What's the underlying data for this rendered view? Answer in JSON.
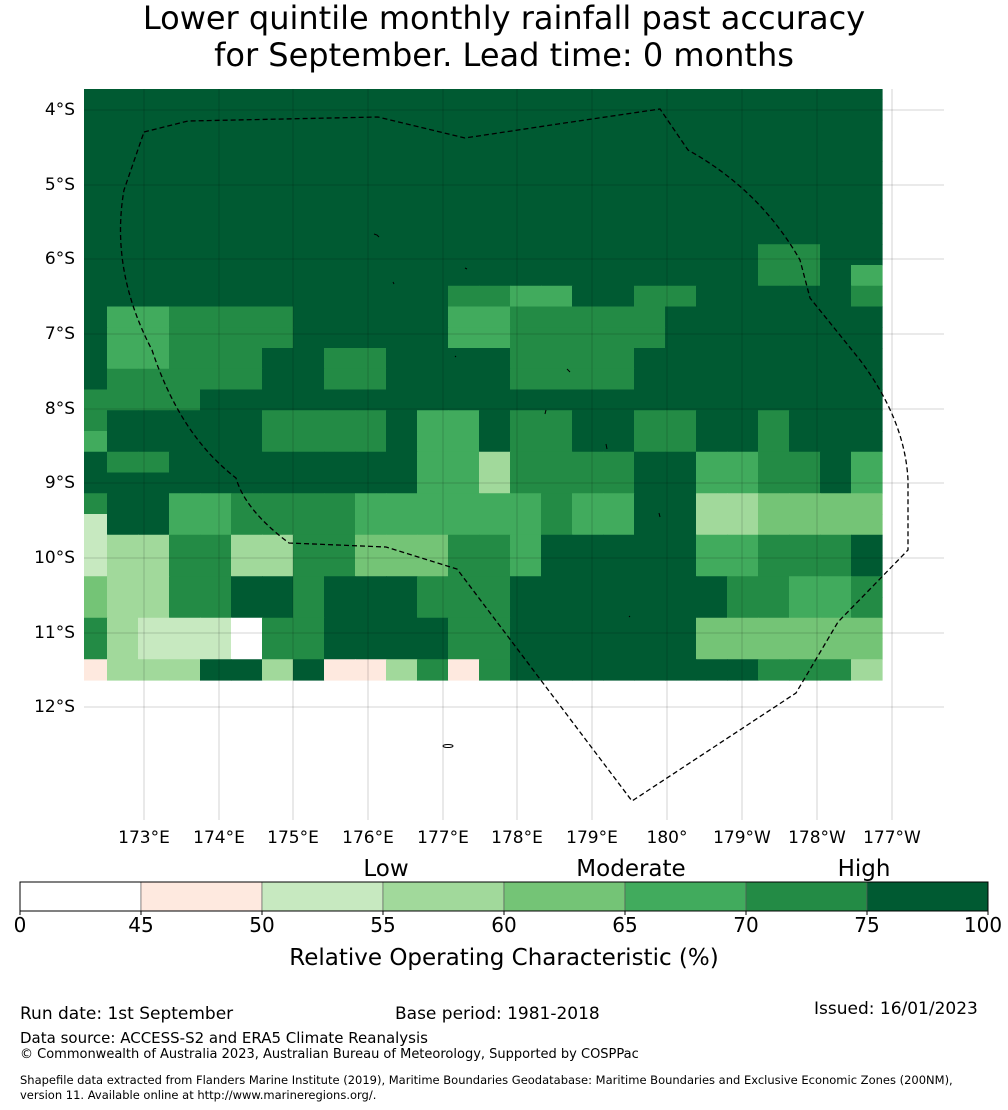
{
  "title": {
    "line1": "Lower quintile monthly rainfall past accuracy",
    "line2": "for September. Lead time: 0 months"
  },
  "map": {
    "latitude_labels": [
      "4°S",
      "5°S",
      "6°S",
      "7°S",
      "8°S",
      "9°S",
      "10°S",
      "11°S",
      "12°S"
    ],
    "longitude_labels": [
      "173°E",
      "174°E",
      "175°E",
      "176°E",
      "177°E",
      "178°E",
      "179°E",
      "180°",
      "179°W",
      "178°W",
      "177°W"
    ],
    "colors": {
      "c0": "#ffffff",
      "c1": "#fee9df",
      "c2": "#c7e9c0",
      "c3": "#a1d99b",
      "c4": "#74c476",
      "c5": "#41ab5d",
      "c6": "#238b45",
      "c7": "#005a32"
    },
    "grid_rows": [
      "77777777777777777777777777",
      "77777777777777777777777777",
      "77777777777777777777777777",
      "77777777777777777777777777",
      "77777777777777777777777777",
      "77777777777777777777777777",
      "77777777777777777777777777",
      "77777777777777777777777777",
      "77777777777777777777776677",
      "77777777777777777777776675",
      "77777777777766557766777776",
      "75566667777755666667777777",
      "75566667777755666667777777",
      "75566677667777666677777777",
      "76666677667777666677777777",
      "66667777777777777777777777",
      "67777766667557667766776777",
      "57777766667557667766776777",
      "76677777777553666677556675",
      "77777777777553666677556675",
      "67755666655555565577334444",
      "27755666655555565577334444",
      "23366336644466577777556667",
      "23366336644466577777556667",
      "43366776777666777777766556",
      "43366776777666777777766556",
      "63222066777766777777444444",
      "63222066777766777777444444",
      "13337737113616777777776663"
    ]
  },
  "legend": {
    "category_low": "Low",
    "category_moderate": "Moderate",
    "category_high": "High",
    "bins": [
      {
        "color": "#ffffff"
      },
      {
        "color": "#fee9df"
      },
      {
        "color": "#c7e9c0"
      },
      {
        "color": "#a1d99b"
      },
      {
        "color": "#74c476"
      },
      {
        "color": "#41ab5d"
      },
      {
        "color": "#238b45"
      },
      {
        "color": "#005a32"
      }
    ],
    "ticks": [
      "0",
      "45",
      "50",
      "55",
      "60",
      "65",
      "70",
      "75",
      "100"
    ],
    "xlabel": "Relative Operating Characteristic (%)"
  },
  "footer": {
    "run_date": "Run date: 1st September",
    "base_period": "Base period: 1981-2018",
    "issued": "Issued: 16/01/2023",
    "data_source": "Data source: ACCESS-S2 and ERA5 Climate Reanalysis",
    "copyright": "© Commonwealth of Australia 2023, Australian Bureau of Meteorology, Supported by COSPPac",
    "shapefile_line1": "Shapefile data extracted from Flanders Marine Institute (2019), Maritime Boundaries Geodatabase: Maritime Boundaries and Exclusive Economic Zones (200NM),",
    "shapefile_line2": "version 11. Available online at http://www.marineregions.org/."
  }
}
